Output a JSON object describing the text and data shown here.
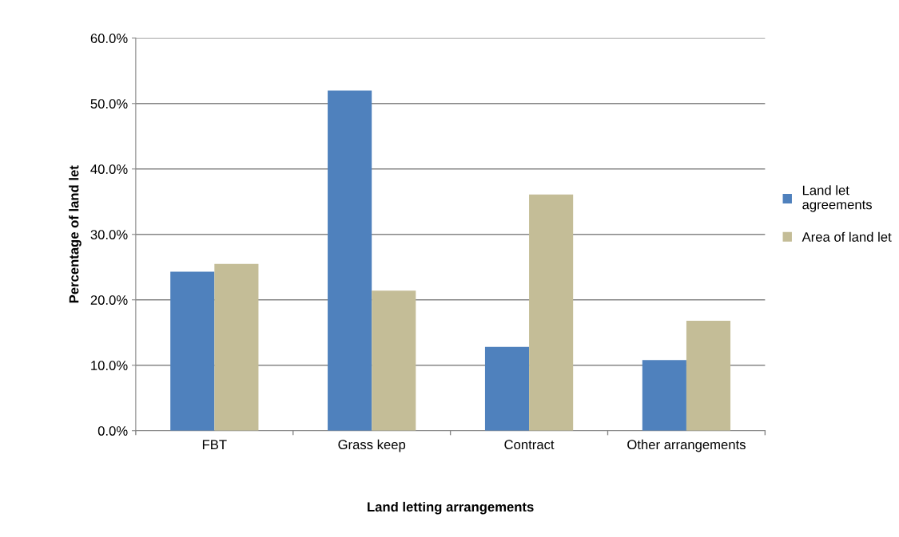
{
  "chart_data": {
    "type": "bar",
    "xlabel": "Land letting arrangements",
    "ylabel": "Percentage of land let",
    "categories": [
      "FBT",
      "Grass keep",
      "Contract",
      "Other arrangements"
    ],
    "series": [
      {
        "name": "Land let\nagreements",
        "color": "#4f81bd",
        "values": [
          24.3,
          52.0,
          12.8,
          10.8
        ]
      },
      {
        "name": "Area of land let",
        "color": "#c4bd97",
        "values": [
          25.5,
          21.4,
          36.1,
          16.8
        ]
      }
    ],
    "ylim": [
      0,
      60
    ],
    "yticks": [
      {
        "value": 0,
        "label": "0.0%"
      },
      {
        "value": 10,
        "label": "10.0%"
      },
      {
        "value": 20,
        "label": "20.0%"
      },
      {
        "value": 30,
        "label": "30.0%"
      },
      {
        "value": 40,
        "label": "40.0%"
      },
      {
        "value": 50,
        "label": "50.0%"
      },
      {
        "value": 60,
        "label": "60.0%"
      }
    ],
    "grid": "y",
    "legend": "right"
  }
}
